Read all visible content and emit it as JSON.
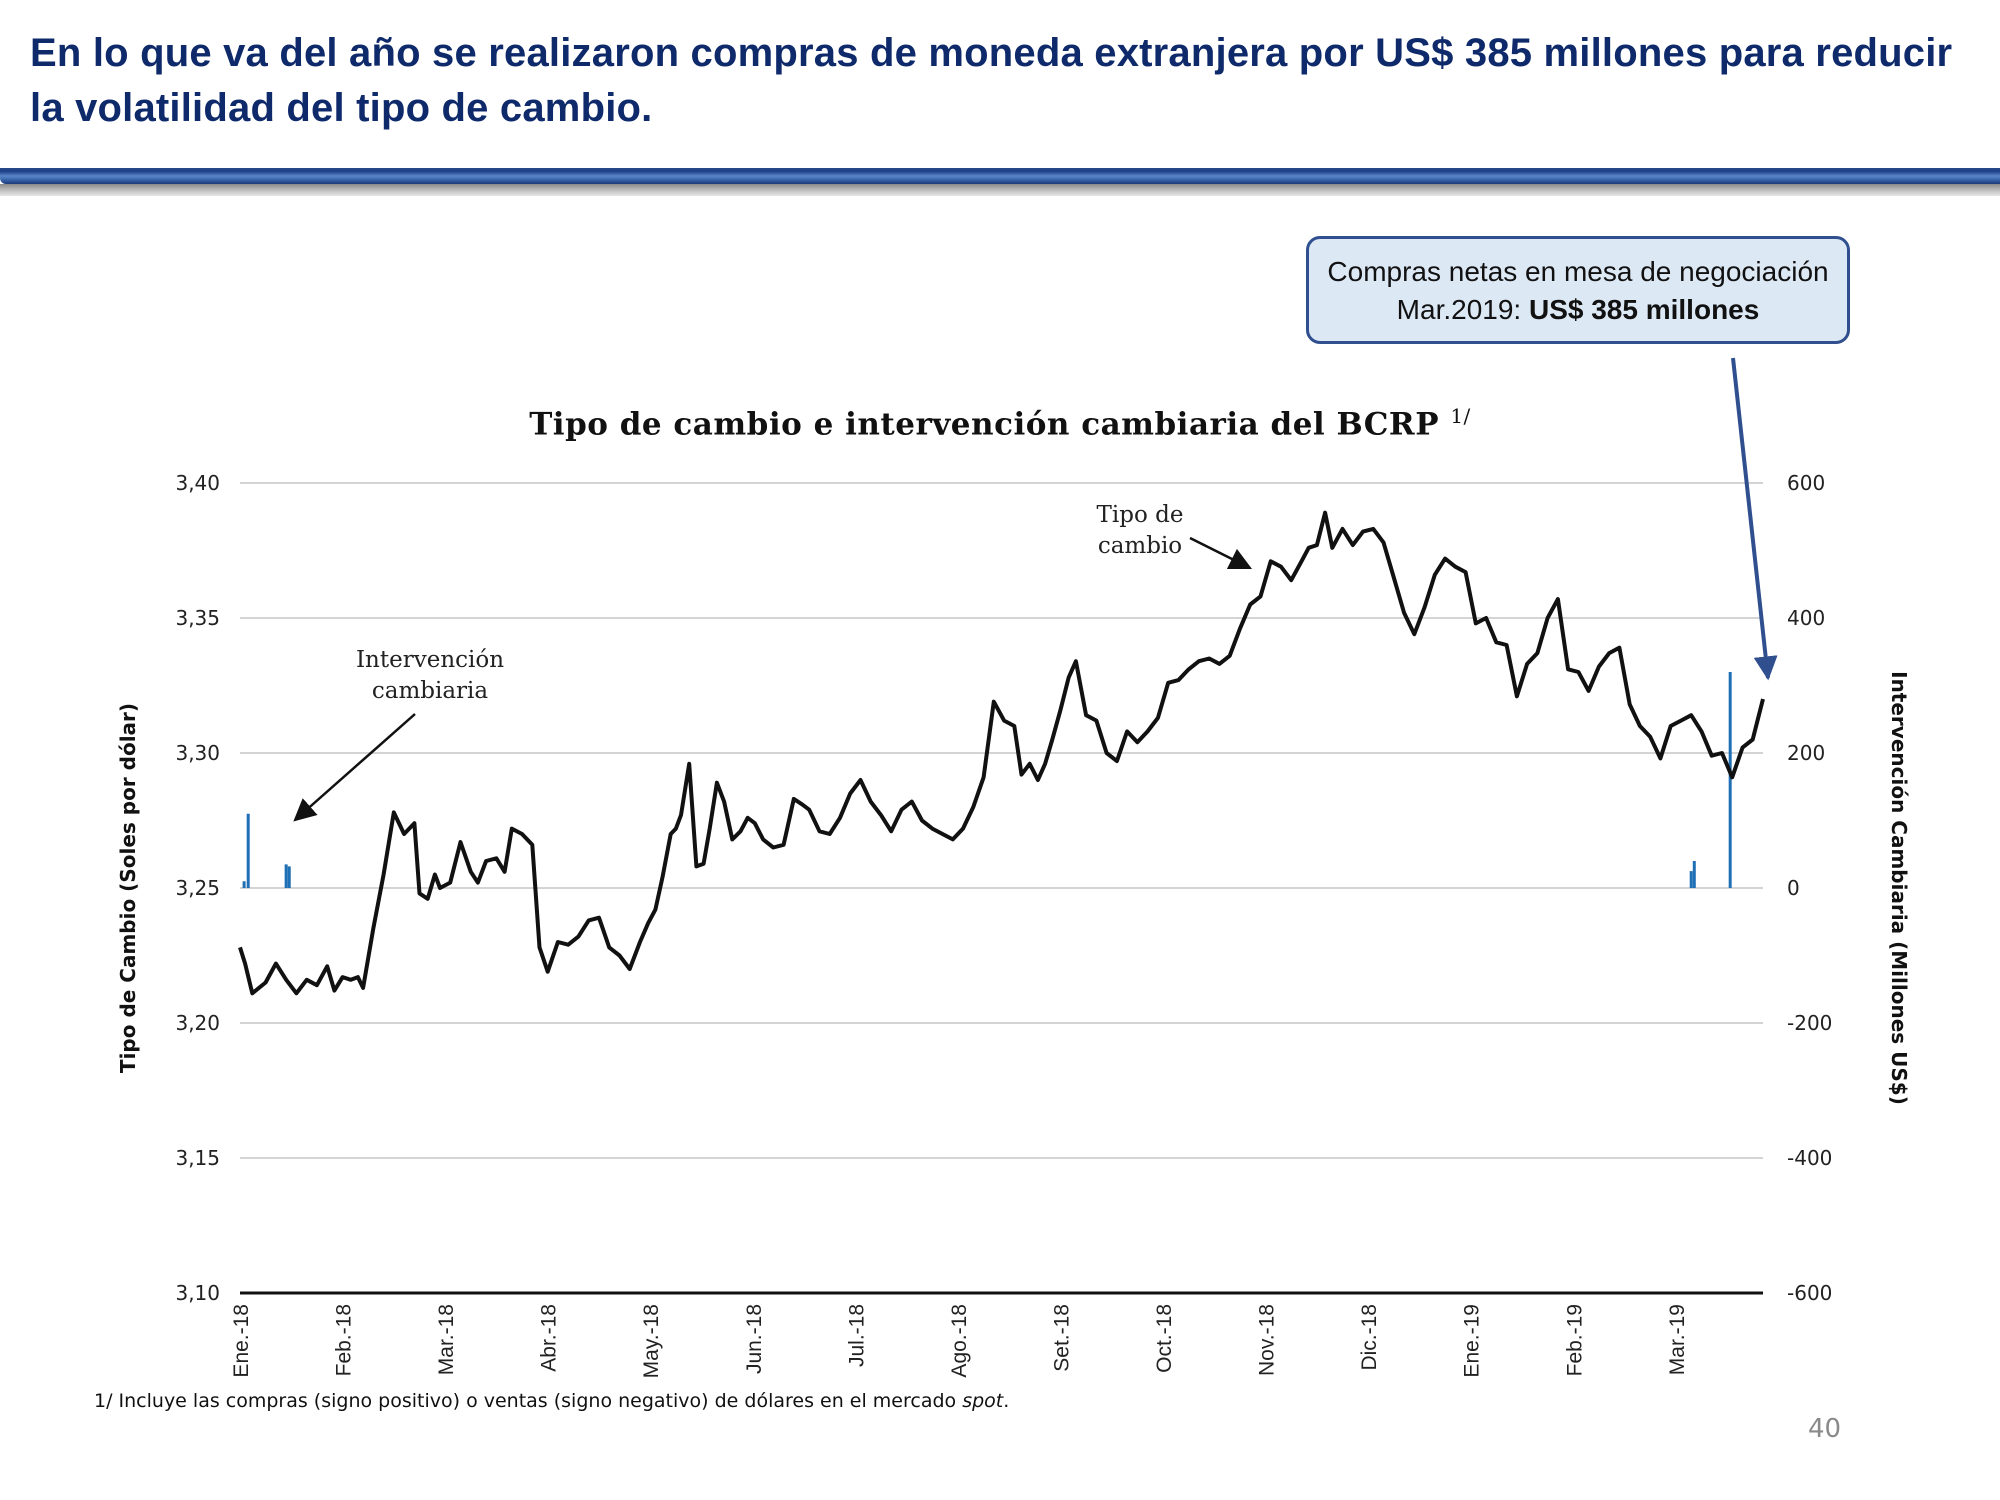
{
  "slide": {
    "headline": "En lo que va del año se realizaron compras de moneda extranjera por US$ 385 millones para reducir la volatilidad del tipo de cambio.",
    "page_number": "40",
    "footnote_prefix": "1/ Incluye las compras (signo positivo) o ventas (signo negativo) de dólares en el mercado ",
    "footnote_italic": "spot",
    "footnote_suffix": "."
  },
  "callout": {
    "line1": "Compras netas en mesa de negociación",
    "line2_prefix": "Mar.2019: ",
    "line2_bold": "US$ 385 millones",
    "accent_color": "#2f4f8f",
    "fill_color": "#dde8f5"
  },
  "chart_data": {
    "type": "line",
    "title": "Tipo de cambio e intervención cambiaria del BCRP",
    "title_superscript": "1/",
    "xlabel": "",
    "ylabel": "Tipo de Cambio (Soles por dólar)",
    "y2label": "Intervención Cambiaria (Millones US$)",
    "ylim": [
      3.1,
      3.4
    ],
    "y2lim": [
      -600,
      600
    ],
    "yticks": [
      "3,40",
      "3,35",
      "3,30",
      "3,25",
      "3,20",
      "3,15",
      "3,10"
    ],
    "y2ticks": [
      "600",
      "400",
      "200",
      "0",
      "-200",
      "-400",
      "-600"
    ],
    "grid": true,
    "x_tick_labels": [
      "Ene.-18",
      "Feb.-18",
      "Mar.-18",
      "Abr.-18",
      "May.-18",
      "Jun.-18",
      "Jul.-18",
      "Ago.-18",
      "Set.-18",
      "Oct.-18",
      "Nov.-18",
      "Dic.-18",
      "Ene.-19",
      "Feb.-19",
      "Mar.-19"
    ],
    "x_range_months": [
      0,
      14.85
    ],
    "annotations": [
      {
        "text_lines": [
          "Intervención",
          "cambiaria"
        ],
        "points_to": "intervention bars Jan-2018"
      },
      {
        "text_lines": [
          "Tipo de",
          "cambio"
        ],
        "points_to": "exchange rate line Oct-2018"
      }
    ],
    "series": [
      {
        "name": "Tipo de cambio",
        "axis": "left",
        "color": "#111111",
        "x_months": [
          0.0,
          0.05,
          0.12,
          0.25,
          0.35,
          0.45,
          0.55,
          0.65,
          0.75,
          0.85,
          0.92,
          1.0,
          1.08,
          1.15,
          1.2,
          1.3,
          1.4,
          1.5,
          1.6,
          1.7,
          1.75,
          1.83,
          1.9,
          1.95,
          2.05,
          2.15,
          2.25,
          2.32,
          2.4,
          2.5,
          2.58,
          2.65,
          2.75,
          2.85,
          2.92,
          3.0,
          3.1,
          3.2,
          3.3,
          3.4,
          3.5,
          3.6,
          3.7,
          3.8,
          3.9,
          3.98,
          4.05,
          4.12,
          4.2,
          4.25,
          4.3,
          4.38,
          4.45,
          4.52,
          4.58,
          4.65,
          4.72,
          4.8,
          4.88,
          4.95,
          5.02,
          5.1,
          5.2,
          5.3,
          5.4,
          5.48,
          5.55,
          5.65,
          5.75,
          5.85,
          5.95,
          6.05,
          6.15,
          6.25,
          6.35,
          6.45,
          6.55,
          6.65,
          6.75,
          6.85,
          6.95,
          7.05,
          7.15,
          7.25,
          7.35,
          7.45,
          7.55,
          7.62,
          7.7,
          7.78,
          7.85,
          7.92,
          8.0,
          8.08,
          8.15,
          8.25,
          8.35,
          8.45,
          8.55,
          8.65,
          8.75,
          8.85,
          8.95,
          9.05,
          9.15,
          9.25,
          9.35,
          9.45,
          9.55,
          9.65,
          9.75,
          9.85,
          9.95,
          10.05,
          10.15,
          10.25,
          10.35,
          10.42,
          10.5,
          10.58,
          10.65,
          10.75,
          10.85,
          10.95,
          11.05,
          11.15,
          11.25,
          11.35,
          11.45,
          11.55,
          11.65,
          11.75,
          11.85,
          11.95,
          12.05,
          12.15,
          12.25,
          12.35,
          12.45,
          12.55,
          12.65,
          12.75,
          12.85,
          12.95,
          13.05,
          13.15,
          13.25,
          13.35,
          13.45,
          13.55,
          13.65,
          13.75,
          13.85,
          13.95,
          14.05,
          14.15,
          14.25,
          14.35,
          14.45,
          14.55,
          14.65,
          14.75,
          14.85
        ],
        "values": [
          3.228,
          3.222,
          3.211,
          3.215,
          3.222,
          3.216,
          3.211,
          3.216,
          3.214,
          3.221,
          3.212,
          3.217,
          3.216,
          3.217,
          3.213,
          3.235,
          3.255,
          3.278,
          3.27,
          3.274,
          3.248,
          3.246,
          3.255,
          3.25,
          3.252,
          3.267,
          3.256,
          3.252,
          3.26,
          3.261,
          3.256,
          3.272,
          3.27,
          3.266,
          3.228,
          3.219,
          3.23,
          3.229,
          3.232,
          3.238,
          3.239,
          3.228,
          3.225,
          3.22,
          3.23,
          3.237,
          3.242,
          3.254,
          3.27,
          3.272,
          3.277,
          3.296,
          3.258,
          3.259,
          3.272,
          3.289,
          3.282,
          3.268,
          3.271,
          3.276,
          3.274,
          3.268,
          3.265,
          3.266,
          3.283,
          3.281,
          3.279,
          3.271,
          3.27,
          3.276,
          3.285,
          3.29,
          3.282,
          3.277,
          3.271,
          3.279,
          3.282,
          3.275,
          3.272,
          3.27,
          3.268,
          3.272,
          3.28,
          3.291,
          3.319,
          3.312,
          3.31,
          3.292,
          3.296,
          3.29,
          3.296,
          3.305,
          3.316,
          3.328,
          3.334,
          3.314,
          3.312,
          3.3,
          3.297,
          3.308,
          3.304,
          3.308,
          3.313,
          3.326,
          3.327,
          3.331,
          3.334,
          3.335,
          3.333,
          3.336,
          3.346,
          3.355,
          3.358,
          3.371,
          3.369,
          3.364,
          3.371,
          3.376,
          3.377,
          3.389,
          3.376,
          3.383,
          3.377,
          3.382,
          3.383,
          3.378,
          3.365,
          3.352,
          3.344,
          3.354,
          3.366,
          3.372,
          3.369,
          3.367,
          3.348,
          3.35,
          3.341,
          3.34,
          3.321,
          3.333,
          3.337,
          3.35,
          3.357,
          3.331,
          3.33,
          3.323,
          3.332,
          3.337,
          3.339,
          3.318,
          3.31,
          3.306,
          3.298,
          3.31,
          3.312,
          3.314,
          3.308,
          3.299,
          3.3,
          3.291,
          3.302,
          3.305,
          3.32
        ],
        "value_note": "Soles por dólar, approximated from chart"
      },
      {
        "name": "Intervención cambiaria",
        "axis": "right",
        "color": "#1f6fb5",
        "type": "bar",
        "x_months": [
          0.04,
          0.08,
          0.45,
          0.48,
          14.15,
          14.18,
          14.53
        ],
        "values": [
          10,
          110,
          35,
          32,
          25,
          40,
          320
        ],
        "value_note": "Millones US$, approximated from chart"
      }
    ]
  }
}
